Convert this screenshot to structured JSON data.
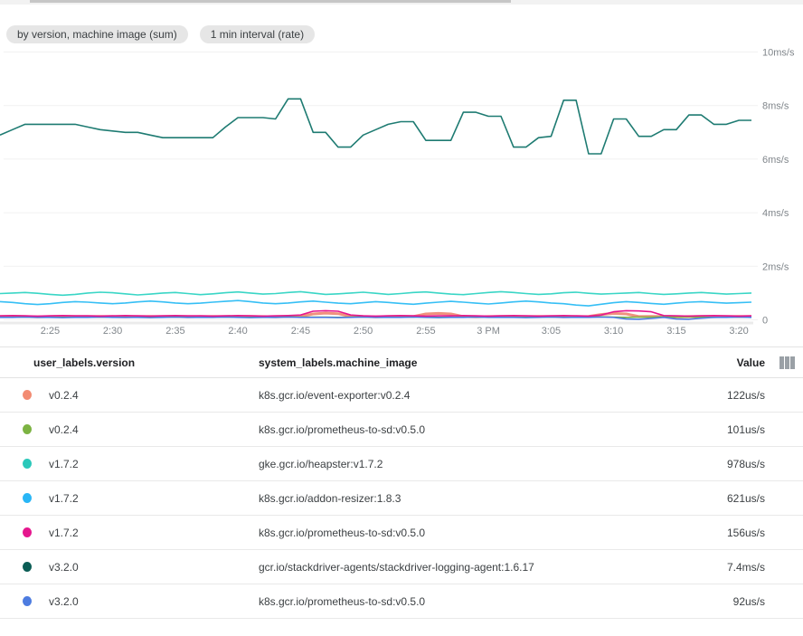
{
  "chips": [
    {
      "label": "by version, machine image (sum)"
    },
    {
      "label": "1 min interval (rate)"
    }
  ],
  "chart_data": {
    "type": "line",
    "title": "",
    "xlabel": "",
    "ylabel": "",
    "unit": "ms/s",
    "ylim": [
      0,
      10
    ],
    "grid": true,
    "legend_position": "table-below",
    "x_start": "2:21 PM",
    "x_end": "3:21 PM",
    "x_interval_minutes": 1,
    "y_ticks": [
      {
        "value": 10,
        "label": "10ms/s"
      },
      {
        "value": 8,
        "label": "8ms/s"
      },
      {
        "value": 6,
        "label": "6ms/s"
      },
      {
        "value": 4,
        "label": "4ms/s"
      },
      {
        "value": 2,
        "label": "2ms/s"
      },
      {
        "value": 0,
        "label": "0"
      }
    ],
    "x_ticks": [
      {
        "t": 4,
        "label": "2:25"
      },
      {
        "t": 9,
        "label": "2:30"
      },
      {
        "t": 14,
        "label": "2:35"
      },
      {
        "t": 19,
        "label": "2:40"
      },
      {
        "t": 24,
        "label": "2:45"
      },
      {
        "t": 29,
        "label": "2:50"
      },
      {
        "t": 34,
        "label": "2:55"
      },
      {
        "t": 39,
        "label": "3 PM"
      },
      {
        "t": 44,
        "label": "3:05"
      },
      {
        "t": 49,
        "label": "3:10"
      },
      {
        "t": 54,
        "label": "3:15"
      },
      {
        "t": 59,
        "label": "3:20"
      }
    ],
    "series": [
      {
        "id": "event-exporter",
        "name": "v0.2.4 k8s.gcr.io/event-exporter:v0.2.4",
        "color": "#F0917E",
        "thick": true,
        "values": [
          0.12,
          0.13,
          0.12,
          0.11,
          0.12,
          0.13,
          0.12,
          0.12,
          0.13,
          0.12,
          0.11,
          0.12,
          0.13,
          0.12,
          0.12,
          0.11,
          0.12,
          0.13,
          0.12,
          0.12,
          0.13,
          0.12,
          0.11,
          0.12,
          0.13,
          0.22,
          0.25,
          0.23,
          0.13,
          0.12,
          0.11,
          0.12,
          0.13,
          0.12,
          0.22,
          0.24,
          0.22,
          0.12,
          0.11,
          0.12,
          0.13,
          0.12,
          0.12,
          0.13,
          0.12,
          0.11,
          0.12,
          0.13,
          0.2,
          0.24,
          0.22,
          0.12,
          0.13,
          0.12,
          0.11,
          0.12,
          0.13,
          0.12,
          0.12,
          0.13,
          0.12
        ]
      },
      {
        "id": "prometheus-v024",
        "name": "v0.2.4 k8s.gcr.io/prometheus-to-sd:v0.5.0",
        "color": "#7CB342",
        "thick": false,
        "values": [
          0.1,
          0.1,
          0.11,
          0.1,
          0.1,
          0.09,
          0.1,
          0.1,
          0.11,
          0.1,
          0.1,
          0.1,
          0.09,
          0.1,
          0.11,
          0.1,
          0.1,
          0.1,
          0.11,
          0.1,
          0.09,
          0.1,
          0.1,
          0.11,
          0.1,
          0.1,
          0.1,
          0.09,
          0.1,
          0.11,
          0.1,
          0.1,
          0.1,
          0.11,
          0.1,
          0.09,
          0.1,
          0.1,
          0.11,
          0.1,
          0.1,
          0.1,
          0.09,
          0.1,
          0.11,
          0.1,
          0.1,
          0.1,
          0.11,
          0.1,
          0.09,
          0.1,
          0.1,
          0.11,
          0.1,
          0.1,
          0.1,
          0.09,
          0.1,
          0.11,
          0.1
        ]
      },
      {
        "id": "prometheus-v320",
        "name": "v3.2.0 k8s.gcr.io/prometheus-to-sd:v0.5.0",
        "color": "#4D7CE0",
        "thick": false,
        "values": [
          0.09,
          0.09,
          0.1,
          0.09,
          0.09,
          0.08,
          0.09,
          0.09,
          0.1,
          0.09,
          0.09,
          0.09,
          0.08,
          0.09,
          0.1,
          0.09,
          0.09,
          0.09,
          0.1,
          0.09,
          0.08,
          0.09,
          0.09,
          0.1,
          0.09,
          0.09,
          0.09,
          0.08,
          0.09,
          0.1,
          0.09,
          0.09,
          0.09,
          0.1,
          0.09,
          0.08,
          0.09,
          0.09,
          0.1,
          0.09,
          0.09,
          0.09,
          0.08,
          0.09,
          0.1,
          0.09,
          0.09,
          0.09,
          0.1,
          0.09,
          0.03,
          0.02,
          0.05,
          0.09,
          0.03,
          0.02,
          0.06,
          0.09,
          0.09,
          0.1,
          0.09
        ]
      },
      {
        "id": "prometheus-v172",
        "name": "v1.7.2 k8s.gcr.io/prometheus-to-sd:v0.5.0",
        "color": "#E5178E",
        "thick": false,
        "values": [
          0.15,
          0.16,
          0.15,
          0.14,
          0.15,
          0.16,
          0.15,
          0.15,
          0.14,
          0.15,
          0.16,
          0.15,
          0.14,
          0.15,
          0.16,
          0.15,
          0.15,
          0.14,
          0.15,
          0.16,
          0.15,
          0.14,
          0.15,
          0.16,
          0.18,
          0.32,
          0.34,
          0.32,
          0.18,
          0.15,
          0.14,
          0.15,
          0.16,
          0.15,
          0.14,
          0.15,
          0.15,
          0.16,
          0.15,
          0.14,
          0.15,
          0.16,
          0.15,
          0.14,
          0.15,
          0.16,
          0.15,
          0.14,
          0.18,
          0.3,
          0.34,
          0.33,
          0.3,
          0.16,
          0.15,
          0.14,
          0.15,
          0.16,
          0.15,
          0.14,
          0.15
        ]
      },
      {
        "id": "addon-resizer",
        "name": "v1.7.2 k8s.gcr.io/addon-resizer:1.8.3",
        "color": "#36BFF5",
        "thick": false,
        "values": [
          0.68,
          0.65,
          0.6,
          0.57,
          0.6,
          0.65,
          0.68,
          0.66,
          0.63,
          0.6,
          0.63,
          0.67,
          0.7,
          0.67,
          0.63,
          0.6,
          0.62,
          0.66,
          0.69,
          0.72,
          0.68,
          0.63,
          0.6,
          0.63,
          0.67,
          0.7,
          0.66,
          0.62,
          0.6,
          0.64,
          0.68,
          0.65,
          0.61,
          0.58,
          0.62,
          0.66,
          0.69,
          0.66,
          0.62,
          0.59,
          0.63,
          0.67,
          0.7,
          0.67,
          0.63,
          0.6,
          0.55,
          0.52,
          0.58,
          0.64,
          0.68,
          0.65,
          0.61,
          0.58,
          0.62,
          0.66,
          0.68,
          0.65,
          0.62,
          0.64,
          0.66
        ]
      },
      {
        "id": "heapster",
        "name": "v1.7.2 gke.gcr.io/heapster:v1.7.2",
        "color": "#3AD6C6",
        "thick": false,
        "values": [
          0.98,
          1.0,
          1.02,
          0.99,
          0.95,
          0.92,
          0.95,
          1.0,
          1.03,
          1.01,
          0.97,
          0.93,
          0.96,
          1.0,
          1.02,
          0.98,
          0.94,
          0.97,
          1.01,
          1.04,
          1.0,
          0.96,
          0.98,
          1.02,
          1.05,
          1.0,
          0.95,
          0.97,
          1.0,
          1.03,
          0.99,
          0.95,
          0.98,
          1.02,
          1.04,
          1.0,
          0.96,
          0.94,
          0.98,
          1.02,
          1.05,
          1.02,
          0.98,
          0.95,
          0.97,
          1.01,
          1.03,
          0.99,
          0.96,
          0.98,
          1.0,
          1.02,
          0.98,
          0.95,
          0.97,
          1.0,
          1.02,
          0.99,
          0.96,
          0.98,
          1.0
        ]
      },
      {
        "id": "logging-agent",
        "name": "v3.2.0 gcr.io/stackdriver-agents/stackdriver-logging-agent:1.6.17",
        "color": "#1E7B72",
        "thick": false,
        "values": [
          6.9,
          7.1,
          7.3,
          7.3,
          7.3,
          7.3,
          7.3,
          7.2,
          7.1,
          7.05,
          7.0,
          7.0,
          6.9,
          6.8,
          6.8,
          6.8,
          6.8,
          6.8,
          7.2,
          7.55,
          7.55,
          7.55,
          7.5,
          8.25,
          8.25,
          7.0,
          7.0,
          6.45,
          6.45,
          6.9,
          7.1,
          7.3,
          7.4,
          7.4,
          6.7,
          6.7,
          6.7,
          7.75,
          7.75,
          7.6,
          7.6,
          6.45,
          6.45,
          6.8,
          6.85,
          8.2,
          8.2,
          6.2,
          6.2,
          7.5,
          7.5,
          6.85,
          6.85,
          7.1,
          7.1,
          7.65,
          7.65,
          7.3,
          7.3,
          7.45,
          7.45
        ]
      }
    ]
  },
  "table": {
    "columns": [
      "user_labels.version",
      "system_labels.machine_image",
      "Value"
    ],
    "column_picker_icon": "view-columns-icon",
    "rows": [
      {
        "version": "v0.2.4",
        "machine_image": "k8s.gcr.io/event-exporter:v0.2.4",
        "value": "122us/s",
        "color": "#F28B72"
      },
      {
        "version": "v0.2.4",
        "machine_image": "k8s.gcr.io/prometheus-to-sd:v0.5.0",
        "value": "101us/s",
        "color": "#7CB342"
      },
      {
        "version": "v1.7.2",
        "machine_image": "gke.gcr.io/heapster:v1.7.2",
        "value": "978us/s",
        "color": "#2BC8BA"
      },
      {
        "version": "v1.7.2",
        "machine_image": "k8s.gcr.io/addon-resizer:1.8.3",
        "value": "621us/s",
        "color": "#29B6F6"
      },
      {
        "version": "v1.7.2",
        "machine_image": "k8s.gcr.io/prometheus-to-sd:v0.5.0",
        "value": "156us/s",
        "color": "#E5178E"
      },
      {
        "version": "v3.2.0",
        "machine_image": "gcr.io/stackdriver-agents/stackdriver-logging-agent:1.6.17",
        "value": "7.4ms/s",
        "color": "#0B5D55"
      },
      {
        "version": "v3.2.0",
        "machine_image": "k8s.gcr.io/prometheus-to-sd:v0.5.0",
        "value": "92us/s",
        "color": "#4D7CE0"
      }
    ]
  }
}
